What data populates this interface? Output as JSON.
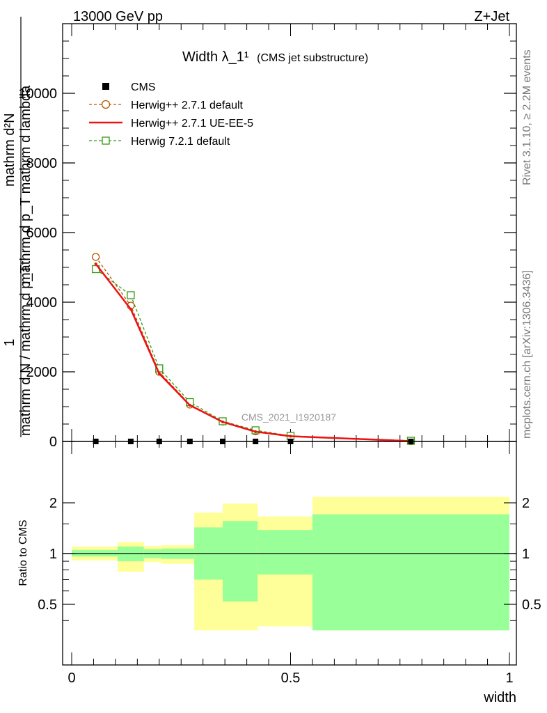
{
  "header": {
    "left": "13000 GeV pp",
    "right": "Z+Jet"
  },
  "side_texts": {
    "rivet": "Rivet 3.1.10, ≥ 2.2M events",
    "mcplots": "mcplots.cern.ch [arXiv:1306.3436]"
  },
  "watermark": "CMS_2021_I1920187",
  "ylabel_top": {
    "one": "1",
    "denominator": "mathrm d N / mathrm d p_T",
    "numerator_line1": "mathrm d²N",
    "numerator_line2": "mathrm d p_T mathrm d lambda"
  },
  "ylabel_bottom": "Ratio to CMS",
  "xlabel": "width",
  "colors": {
    "herwig_default": "#b35900",
    "herwig_ueee5": "#ee1111",
    "herwig721": "#339911",
    "band_yellow": "#ffff99",
    "band_green": "#99ff99"
  },
  "chart_data": [
    {
      "type": "line",
      "title": "Width λ_1¹",
      "subtitle": "(CMS jet substructure)",
      "xlim": [
        0,
        1
      ],
      "ylim": [
        0,
        12000
      ],
      "y_ticks": [
        "0",
        "2000",
        "4000",
        "6000",
        "8000",
        "10000"
      ],
      "x": [
        0.055,
        0.135,
        0.2,
        0.27,
        0.345,
        0.42,
        0.5,
        0.775
      ],
      "series": [
        {
          "name": "CMS",
          "marker": "square",
          "values": [
            0,
            0,
            0,
            0,
            0,
            0,
            0,
            0
          ]
        },
        {
          "name": "Herwig++ 2.7.1 default",
          "marker": "circle",
          "dashed": true,
          "values": [
            5300,
            3900,
            2000,
            1060,
            570,
            290,
            160,
            10
          ]
        },
        {
          "name": "Herwig++ 2.7.1 UE-EE-5",
          "marker": "none",
          "dashed": false,
          "values": [
            5100,
            3800,
            1950,
            1040,
            560,
            280,
            150,
            10
          ]
        },
        {
          "name": "Herwig 7.2.1 default",
          "marker": "square-open",
          "dashed": true,
          "values": [
            4950,
            4200,
            2100,
            1130,
            580,
            320,
            160,
            20
          ]
        }
      ],
      "legend_position": "top-left"
    },
    {
      "type": "area",
      "xlim": [
        0,
        1
      ],
      "ylim": [
        0.35,
        2.25
      ],
      "y_ticks": [
        "0.5",
        "1",
        "2"
      ],
      "x_ticks": [
        "0",
        "0.5",
        "1"
      ],
      "bins": [
        0,
        0.105,
        0.165,
        0.205,
        0.28,
        0.345,
        0.425,
        0.55,
        1.0
      ],
      "yellow_low": [
        0.91,
        0.78,
        0.89,
        0.87,
        0.35,
        0.35,
        0.37,
        0.35
      ],
      "yellow_high": [
        1.1,
        1.17,
        1.11,
        1.12,
        1.75,
        1.98,
        1.66,
        2.17
      ],
      "green_low": [
        0.96,
        0.9,
        0.94,
        0.93,
        0.7,
        0.52,
        0.75,
        0.35
      ],
      "green_high": [
        1.05,
        1.1,
        1.06,
        1.07,
        1.43,
        1.56,
        1.38,
        1.71
      ],
      "reference": 1
    }
  ]
}
